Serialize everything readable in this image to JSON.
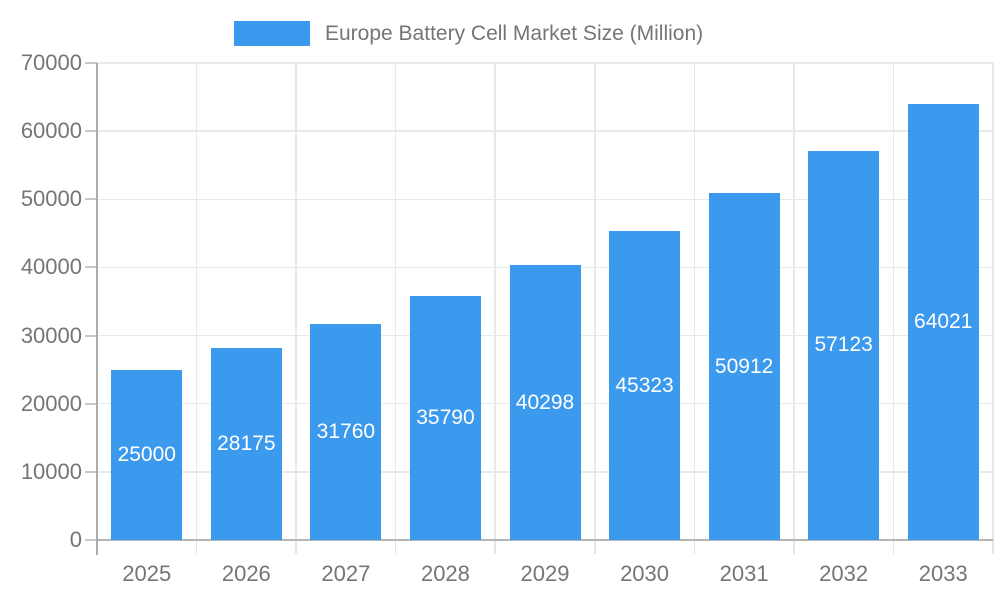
{
  "legend": {
    "label": "Europe Battery Cell Market Size (Million)"
  },
  "chart_data": {
    "type": "bar",
    "title": "Europe Battery Cell Market Size (Million)",
    "categories": [
      "2025",
      "2026",
      "2027",
      "2028",
      "2029",
      "2030",
      "2031",
      "2032",
      "2033"
    ],
    "values": [
      25000,
      28175,
      31760,
      35790,
      40298,
      45323,
      50912,
      57123,
      64021
    ],
    "series_name": "Europe Battery Cell Market Size (Million)",
    "xlabel": "",
    "ylabel": "",
    "ylim": [
      0,
      70000
    ],
    "yticks": [
      0,
      10000,
      20000,
      30000,
      40000,
      50000,
      60000,
      70000
    ],
    "grid": true,
    "legend_position": "top-center",
    "value_label_position": "inside-center"
  },
  "colors": {
    "bar": "#3B99EE",
    "axis_text": "#757575",
    "bar_label_text": "#FFFFFF",
    "gridline": "#E9E9E9",
    "axis_line_y": "#ABABAB",
    "axis_line_x": "#B5B5B5",
    "y_tick": "#C9C9C9",
    "x_tick": "#E4E4E4",
    "background": "#FFFFFF"
  }
}
